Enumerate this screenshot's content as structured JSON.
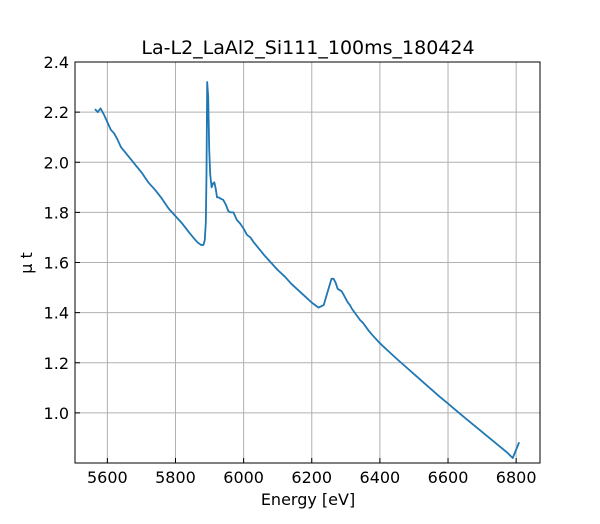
{
  "chart_data": {
    "type": "line",
    "title": "La-L2_LaAl2_Si111_100ms_180424",
    "xlabel": "Energy [eV]",
    "ylabel": "μ t",
    "xlim": [
      5505,
      6870
    ],
    "ylim": [
      0.8,
      2.4
    ],
    "xticks": [
      5600,
      5800,
      6000,
      6200,
      6400,
      6600,
      6800
    ],
    "yticks": [
      1.0,
      1.2,
      1.4,
      1.6,
      1.8,
      2.0,
      2.2,
      2.4
    ],
    "xtick_labels": [
      "5600",
      "5800",
      "6000",
      "6200",
      "6400",
      "6600",
      "6800"
    ],
    "ytick_labels": [
      "1.0",
      "1.2",
      "1.4",
      "1.6",
      "1.8",
      "2.0",
      "2.2",
      "2.4"
    ],
    "grid": true,
    "tick_direction": "in",
    "line_color": "#1f77b4",
    "series": [
      {
        "x": [
          5565,
          5572,
          5580,
          5590,
          5600,
          5610,
          5620,
          5630,
          5640,
          5655,
          5670,
          5685,
          5700,
          5720,
          5740,
          5760,
          5780,
          5800,
          5820,
          5840,
          5855,
          5865,
          5875,
          5882,
          5886,
          5889,
          5891,
          5893,
          5896,
          5899,
          5902,
          5906,
          5910,
          5914,
          5918,
          5922,
          5927,
          5932,
          5940,
          5948,
          5955,
          5962,
          5970,
          5980,
          5990,
          6000,
          6010,
          6020,
          6030,
          6045,
          6060,
          6080,
          6100,
          6120,
          6140,
          6160,
          6180,
          6200,
          6220,
          6235,
          6248,
          6258,
          6264,
          6270,
          6276,
          6282,
          6288,
          6294,
          6300,
          6306,
          6312,
          6318,
          6326,
          6334,
          6342,
          6350,
          6358,
          6366,
          6375,
          6385,
          6395,
          6410,
          6430,
          6450,
          6475,
          6500,
          6525,
          6550,
          6575,
          6600,
          6625,
          6650,
          6675,
          6700,
          6725,
          6750,
          6775,
          6790,
          6808
        ],
        "y": [
          2.21,
          2.2,
          2.215,
          2.19,
          2.16,
          2.13,
          2.115,
          2.09,
          2.06,
          2.035,
          2.01,
          1.985,
          1.96,
          1.92,
          1.89,
          1.855,
          1.815,
          1.785,
          1.755,
          1.72,
          1.695,
          1.68,
          1.67,
          1.67,
          1.69,
          1.76,
          1.95,
          2.32,
          2.26,
          2.05,
          1.95,
          1.9,
          1.915,
          1.92,
          1.895,
          1.86,
          1.86,
          1.855,
          1.85,
          1.83,
          1.805,
          1.8,
          1.8,
          1.77,
          1.755,
          1.735,
          1.71,
          1.7,
          1.68,
          1.655,
          1.63,
          1.6,
          1.57,
          1.545,
          1.515,
          1.49,
          1.465,
          1.44,
          1.42,
          1.43,
          1.49,
          1.535,
          1.535,
          1.52,
          1.495,
          1.49,
          1.485,
          1.47,
          1.455,
          1.44,
          1.43,
          1.415,
          1.4,
          1.385,
          1.37,
          1.36,
          1.345,
          1.33,
          1.315,
          1.3,
          1.285,
          1.265,
          1.24,
          1.215,
          1.185,
          1.155,
          1.125,
          1.095,
          1.065,
          1.037,
          1.008,
          0.98,
          0.952,
          0.924,
          0.896,
          0.868,
          0.84,
          0.82,
          0.88
        ]
      }
    ]
  }
}
